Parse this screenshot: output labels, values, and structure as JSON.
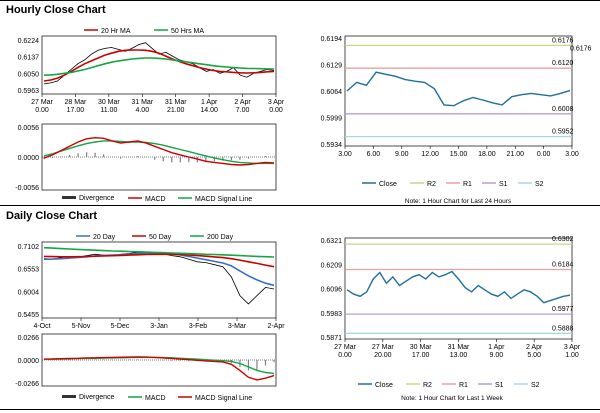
{
  "sections": {
    "hourly_title": "Hourly Close Chart",
    "daily_title": "Daily Close Chart"
  },
  "colors": {
    "close": "#1f6fa0",
    "price": "#000000",
    "ma20": "#cc0000",
    "ma50": "#14a546",
    "ma200": "#14a546",
    "divergence": "#808080",
    "r2": "#c8d68a",
    "r1": "#e8a0a0",
    "s1": "#b8a0d0",
    "s2": "#a8d8e0",
    "ma20_daily": "#3a6fc4"
  },
  "chart_data": [
    {
      "id": "hourly_price",
      "type": "line",
      "title": "Hourly Close Chart",
      "legend": [
        "20 Hr MA",
        "50 Hrs MA"
      ],
      "yticks": [
        "0.6224",
        "0.6137",
        "0.6050",
        "0.5963"
      ],
      "ylim": [
        0.5963,
        0.6224
      ],
      "xticks": [
        [
          "27 Mar",
          "0.00"
        ],
        [
          "28 Mar",
          "17.00"
        ],
        [
          "30 Mar",
          "11.00"
        ],
        [
          "31 Mar",
          "4.00"
        ],
        [
          "31 Mar",
          "21.00"
        ],
        [
          "1 Apr",
          "14.00"
        ],
        [
          "2 Apr",
          "7.00"
        ],
        [
          "3 Apr",
          "0.00"
        ]
      ],
      "series": [
        {
          "name": "Close",
          "values": [
            0.5995,
            0.6,
            0.601,
            0.604,
            0.607,
            0.61,
            0.612,
            0.615,
            0.617,
            0.618,
            0.6185,
            0.6175,
            0.6165,
            0.618,
            0.62,
            0.621,
            0.618,
            0.615,
            0.616,
            0.614,
            0.612,
            0.611,
            0.61,
            0.608,
            0.606,
            0.607,
            0.605,
            0.606,
            0.608,
            0.604,
            0.603,
            0.605,
            0.606,
            0.607,
            0.6065
          ]
        },
        {
          "name": "20 Hr MA",
          "values": [
            0.601,
            0.6015,
            0.6025,
            0.604,
            0.606,
            0.608,
            0.61,
            0.6115,
            0.613,
            0.6145,
            0.6155,
            0.6165,
            0.617,
            0.6172,
            0.6172,
            0.617,
            0.6165,
            0.6155,
            0.614,
            0.6125,
            0.6112,
            0.61,
            0.609,
            0.608,
            0.6072,
            0.6065,
            0.606,
            0.6058,
            0.6055,
            0.6053,
            0.6052,
            0.6053,
            0.6055,
            0.6058,
            0.606
          ]
        },
        {
          "name": "50 Hrs MA",
          "values": [
            0.604,
            0.6042,
            0.6045,
            0.605,
            0.6055,
            0.6062,
            0.607,
            0.608,
            0.609,
            0.61,
            0.6108,
            0.6115,
            0.612,
            0.6125,
            0.6128,
            0.613,
            0.613,
            0.6128,
            0.6125,
            0.612,
            0.6115,
            0.611,
            0.6105,
            0.61,
            0.6095,
            0.609,
            0.6086,
            0.6083,
            0.608,
            0.6078,
            0.6076,
            0.6075,
            0.6074,
            0.6073,
            0.6072
          ]
        }
      ]
    },
    {
      "id": "hourly_macd",
      "type": "line",
      "yticks": [
        "0.0056",
        "0.0000",
        "-0.0056"
      ],
      "ylim": [
        -0.0056,
        0.0056
      ],
      "legend": [
        "Divergence",
        "MACD",
        "MACD Signal Line"
      ],
      "series": [
        {
          "name": "MACD",
          "values": [
            -0.0002,
            0.0004,
            0.0012,
            0.002,
            0.0028,
            0.0034,
            0.0036,
            0.0035,
            0.003,
            0.0026,
            0.0028,
            0.003,
            0.0026,
            0.002,
            0.0014,
            0.0008,
            0.0004,
            0.0,
            -0.0004,
            -0.0008,
            -0.001,
            -0.0012,
            -0.0014,
            -0.0015,
            -0.0014,
            -0.0012,
            -0.001,
            -0.0011
          ]
        },
        {
          "name": "MACD Signal Line",
          "values": [
            0.0002,
            0.0006,
            0.0011,
            0.0016,
            0.0021,
            0.0025,
            0.0028,
            0.003,
            0.003,
            0.0029,
            0.0028,
            0.0028,
            0.0027,
            0.0025,
            0.0022,
            0.0018,
            0.0014,
            0.001,
            0.0006,
            0.0002,
            -0.0002,
            -0.0005,
            -0.0008,
            -0.001,
            -0.0011,
            -0.0012,
            -0.0012,
            -0.0012
          ]
        }
      ]
    },
    {
      "id": "hourly_24h",
      "type": "line",
      "note": "Note: 1 Hour Chart for Last 24 Hours",
      "yticks": [
        "0.6194",
        "0.6129",
        "0.6064",
        "0.5999",
        "0.5934"
      ],
      "ylim": [
        0.5934,
        0.6194
      ],
      "xticks": [
        "3.00",
        "6.00",
        "9.00",
        "12.00",
        "15.00",
        "18.00",
        "21.00",
        "0.00",
        "3.00"
      ],
      "levels": [
        {
          "name": "R2",
          "value": 0.6176,
          "labels": [
            "0.6176",
            "0.6176"
          ]
        },
        {
          "name": "R1",
          "value": 0.612,
          "labels": [
            "0.6120"
          ]
        },
        {
          "name": "S1",
          "value": 0.6008,
          "labels": [
            "0.6008"
          ]
        },
        {
          "name": "S2",
          "value": 0.5952,
          "labels": [
            "0.5952"
          ]
        }
      ],
      "legend": [
        "Close",
        "R2",
        "R1",
        "S1",
        "S2"
      ],
      "series": [
        {
          "name": "Close",
          "values": [
            0.6064,
            0.6085,
            0.6078,
            0.611,
            0.6105,
            0.61,
            0.6092,
            0.6088,
            0.6085,
            0.607,
            0.603,
            0.6028,
            0.604,
            0.6048,
            0.6042,
            0.6035,
            0.603,
            0.605,
            0.6055,
            0.6058,
            0.6055,
            0.6052,
            0.6058,
            0.6065
          ]
        }
      ]
    },
    {
      "id": "daily_price",
      "type": "line",
      "title": "Daily Close Chart",
      "legend": [
        "20 Day",
        "50 Day",
        "200 Day"
      ],
      "yticks": [
        "0.7102",
        "0.6553",
        "0.6004",
        "0.5455"
      ],
      "ylim": [
        0.5455,
        0.7102
      ],
      "xticks": [
        "4-Oct",
        "5-Nov",
        "5-Dec",
        "3-Jan",
        "3-Feb",
        "3-Mar",
        "2-Apr"
      ],
      "series": [
        {
          "name": "Close",
          "values": [
            0.68,
            0.678,
            0.682,
            0.685,
            0.683,
            0.687,
            0.69,
            0.688,
            0.686,
            0.69,
            0.692,
            0.695,
            0.693,
            0.694,
            0.691,
            0.687,
            0.684,
            0.678,
            0.672,
            0.67,
            0.665,
            0.66,
            0.635,
            0.59,
            0.57,
            0.59,
            0.61,
            0.606
          ]
        },
        {
          "name": "20 Day",
          "values": [
            0.678,
            0.6785,
            0.6795,
            0.681,
            0.6825,
            0.684,
            0.686,
            0.6875,
            0.6885,
            0.689,
            0.69,
            0.6915,
            0.6925,
            0.693,
            0.6925,
            0.691,
            0.6885,
            0.685,
            0.681,
            0.677,
            0.673,
            0.669,
            0.662,
            0.65,
            0.638,
            0.628,
            0.62,
            0.615
          ]
        },
        {
          "name": "50 Day",
          "values": [
            0.685,
            0.6845,
            0.684,
            0.684,
            0.6842,
            0.6848,
            0.6855,
            0.6862,
            0.6868,
            0.6875,
            0.6882,
            0.689,
            0.6896,
            0.69,
            0.6902,
            0.69,
            0.6895,
            0.6885,
            0.687,
            0.6855,
            0.6838,
            0.682,
            0.6795,
            0.676,
            0.672,
            0.668,
            0.664,
            0.66
          ]
        },
        {
          "name": "200 Day",
          "values": [
            0.706,
            0.705,
            0.704,
            0.703,
            0.702,
            0.701,
            0.7,
            0.699,
            0.6982,
            0.6975,
            0.6968,
            0.6962,
            0.6955,
            0.6948,
            0.694,
            0.6932,
            0.6925,
            0.6918,
            0.691,
            0.6902,
            0.6895,
            0.6888,
            0.688,
            0.687,
            0.686,
            0.685,
            0.6842,
            0.6835
          ]
        }
      ]
    },
    {
      "id": "daily_macd",
      "type": "line",
      "yticks": [
        "0.0266",
        "0.0000",
        "-0.0266"
      ],
      "ylim": [
        -0.0266,
        0.0266
      ],
      "legend": [
        "Divergence",
        "MACD",
        "MACD Signal Line"
      ],
      "series": [
        {
          "name": "MACD",
          "values": [
            0.001,
            0.0012,
            0.0015,
            0.0018,
            0.002,
            0.0024,
            0.0026,
            0.0028,
            0.003,
            0.0032,
            0.0034,
            0.0036,
            0.0034,
            0.003,
            0.0024,
            0.0018,
            0.001,
            0.0004,
            -0.0004,
            -0.001,
            -0.0016,
            -0.0022,
            -0.005,
            -0.012,
            -0.02,
            -0.023,
            -0.021,
            -0.018
          ]
        },
        {
          "name": "MACD Signal Line",
          "values": [
            0.0008,
            0.001,
            0.0012,
            0.0014,
            0.0016,
            0.0018,
            0.002,
            0.0022,
            0.0024,
            0.0026,
            0.0028,
            0.003,
            0.0031,
            0.003,
            0.0028,
            0.0025,
            0.002,
            0.0015,
            0.001,
            0.0004,
            -0.0002,
            -0.0008,
            -0.0016,
            -0.004,
            -0.008,
            -0.012,
            -0.0145,
            -0.0155
          ]
        }
      ]
    },
    {
      "id": "daily_week",
      "type": "line",
      "note": "Note: 1 Hour Chart for Last 1 Week",
      "yticks": [
        "0.6321",
        "0.6209",
        "0.6096",
        "0.5983",
        "0.5871"
      ],
      "ylim": [
        0.5871,
        0.6321
      ],
      "xticks": [
        [
          "27 Mar",
          "0.00"
        ],
        [
          "27 Mar",
          "20.00"
        ],
        [
          "30 Mar",
          "17.00"
        ],
        [
          "31 Mar",
          "13.00"
        ],
        [
          "1 Apr",
          "9.00"
        ],
        [
          "2 Apr",
          "5.00"
        ],
        [
          "3 Apr",
          "1.00"
        ]
      ],
      "levels": [
        {
          "name": "R2",
          "value": 0.6302,
          "labels": [
            "0.6302"
          ]
        },
        {
          "name": "R1",
          "value": 0.6184,
          "labels": [
            "0.6184"
          ]
        },
        {
          "name": "S1",
          "value": 0.5977,
          "labels": [
            "0.5977"
          ]
        },
        {
          "name": "S2",
          "value": 0.5888,
          "labels": [
            "0.5888"
          ]
        }
      ],
      "legend": [
        "Close",
        "R2",
        "R1",
        "S1",
        "S2"
      ],
      "series": [
        {
          "name": "Close",
          "values": [
            0.609,
            0.607,
            0.606,
            0.608,
            0.614,
            0.617,
            0.612,
            0.615,
            0.611,
            0.613,
            0.615,
            0.616,
            0.614,
            0.617,
            0.615,
            0.616,
            0.6175,
            0.614,
            0.61,
            0.608,
            0.611,
            0.609,
            0.607,
            0.606,
            0.608,
            0.605,
            0.607,
            0.609,
            0.608,
            0.606,
            0.603,
            0.604,
            0.605,
            0.606,
            0.6065
          ]
        }
      ]
    }
  ]
}
